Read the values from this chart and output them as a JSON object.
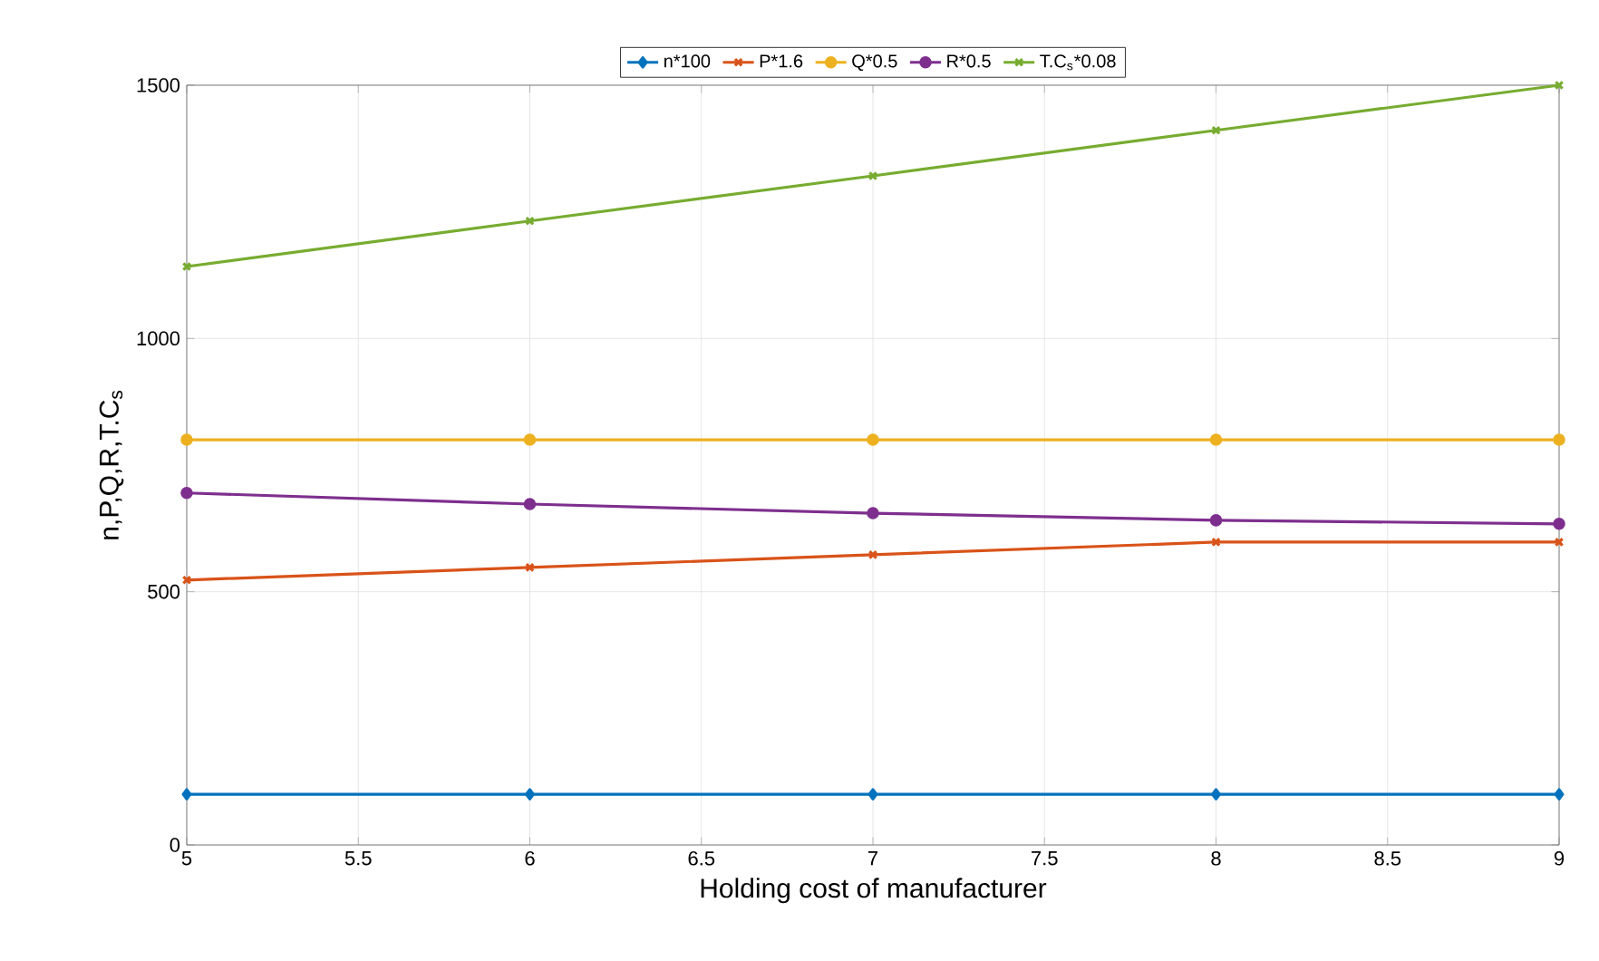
{
  "chart_data": {
    "type": "line",
    "xlabel": "Holding cost of manufacturer",
    "ylabel": "n,P,Q,R,T.C$_{s}$",
    "x": [
      5,
      6,
      7,
      8,
      9
    ],
    "xlim": [
      5,
      9
    ],
    "xticks": [
      5,
      5.5,
      6,
      6.5,
      7,
      7.5,
      8,
      8.5,
      9
    ],
    "ylim": [
      0,
      1500
    ],
    "yticks": [
      0,
      500,
      1000,
      1500
    ],
    "grid": true,
    "legend": "top",
    "line_style": "solid",
    "series": [
      {
        "name": "n*100",
        "color": "#0072bd",
        "marker": "diamond",
        "values": [
          100,
          100,
          100,
          100,
          100
        ]
      },
      {
        "name": "P*1.6",
        "color": "#d95319",
        "marker": "cross",
        "values": [
          523,
          548,
          573,
          598,
          598
        ]
      },
      {
        "name": "Q*0.5",
        "color": "#edb120",
        "marker": "circle",
        "values": [
          800,
          800,
          800,
          800,
          800
        ]
      },
      {
        "name": "R*0.5",
        "color": "#7e2f8e",
        "marker": "circle",
        "values": [
          695,
          673,
          655,
          641,
          634
        ]
      },
      {
        "name": "T.C$_{s}$*0.08",
        "color": "#77ac30",
        "marker": "cross",
        "values": [
          1142,
          1232,
          1321,
          1411,
          1500
        ]
      }
    ]
  }
}
